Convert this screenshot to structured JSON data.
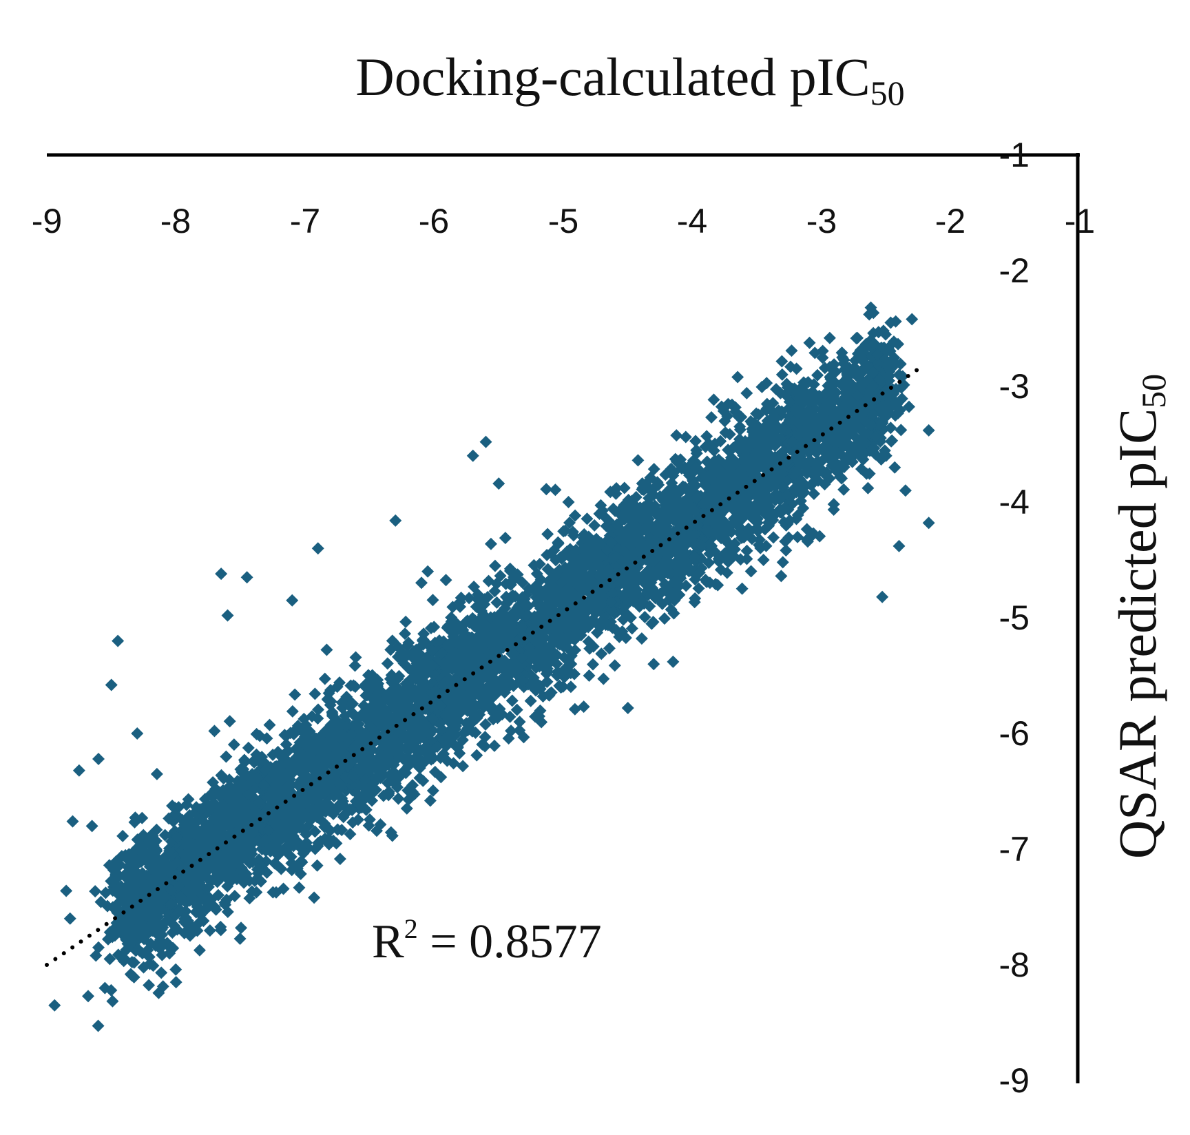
{
  "chart_data": {
    "type": "scatter",
    "x_label": {
      "main": "Docking-calculated pIC",
      "sub": "50"
    },
    "y_label": {
      "main": "QSAR predicted pIC",
      "sub": "50"
    },
    "xlim": [
      -9,
      -1
    ],
    "ylim": [
      -9,
      -1
    ],
    "x_ticks": [
      "-9",
      "-8",
      "-7",
      "-6",
      "-5",
      "-4",
      "-3",
      "-2",
      "-1"
    ],
    "y_ticks": [
      "-1",
      "-2",
      "-3",
      "-4",
      "-5",
      "-6",
      "-7",
      "-8",
      "-9"
    ],
    "x_axis_position": "top",
    "y_axis_position": "right",
    "grid": false,
    "legend": "none",
    "marker_color": "#1a5f80",
    "marker_shape": "diamond",
    "trendline": {
      "style": "dotted",
      "color": "#000000",
      "from": [
        -9.0,
        -8.0
      ],
      "to": [
        -2.25,
        -2.85
      ]
    },
    "annotation": {
      "prefix": "R",
      "sup": "2",
      "text": " = 0.8577"
    },
    "outlier_points": [
      [
        -2.3,
        -2.42
      ],
      [
        -2.17,
        -3.38
      ],
      [
        -2.17,
        -4.18
      ],
      [
        -2.53,
        -4.82
      ],
      [
        -2.4,
        -4.38
      ],
      [
        -3.24,
        -2.83
      ],
      [
        -3.65,
        -2.92
      ],
      [
        -2.6,
        -2.88
      ],
      [
        -2.4,
        -2.9
      ],
      [
        -2.5,
        -3.6
      ],
      [
        -2.35,
        -3.9
      ],
      [
        -5.6,
        -3.48
      ],
      [
        -5.7,
        -3.6
      ],
      [
        -5.5,
        -3.84
      ],
      [
        -8.45,
        -5.2
      ],
      [
        -8.5,
        -5.58
      ],
      [
        -8.75,
        -6.32
      ],
      [
        -8.6,
        -6.22
      ],
      [
        -8.8,
        -6.76
      ],
      [
        -8.65,
        -6.8
      ],
      [
        -8.3,
        -6.0
      ],
      [
        -8.85,
        -7.36
      ],
      [
        -8.82,
        -7.6
      ],
      [
        -8.4,
        -7.55
      ],
      [
        -8.2,
        -7.35
      ],
      [
        -8.6,
        -7.85
      ],
      [
        -8.28,
        -7.88
      ],
      [
        -8.05,
        -7.9
      ],
      [
        -8.35,
        -8.08
      ],
      [
        -8.55,
        -8.2
      ],
      [
        -8.62,
        -7.92
      ],
      [
        -8.94,
        -8.35
      ],
      [
        -8.68,
        -8.27
      ],
      [
        -7.7,
        -7.5
      ],
      [
        -6.47,
        -6.43
      ],
      [
        -6.03,
        -6.58
      ],
      [
        -4.8,
        -5.5
      ],
      [
        -4.15,
        -5.38
      ],
      [
        -4.3,
        -5.4
      ],
      [
        -4.5,
        -5.78
      ],
      [
        -5.5,
        -5.2
      ],
      [
        -3.3,
        -4.52
      ],
      [
        -3.45,
        -4.5
      ],
      [
        -7.65,
        -4.62
      ],
      [
        -7.45,
        -4.65
      ],
      [
        -3.75,
        -3.3
      ],
      [
        -3.0,
        -3.2
      ],
      [
        -2.72,
        -3.08
      ],
      [
        -4.96,
        -4.0
      ],
      [
        -6.3,
        -4.16
      ],
      [
        -6.9,
        -4.4
      ],
      [
        -6.05,
        -4.6
      ],
      [
        -7.1,
        -4.85
      ],
      [
        -7.6,
        -4.98
      ]
    ]
  }
}
